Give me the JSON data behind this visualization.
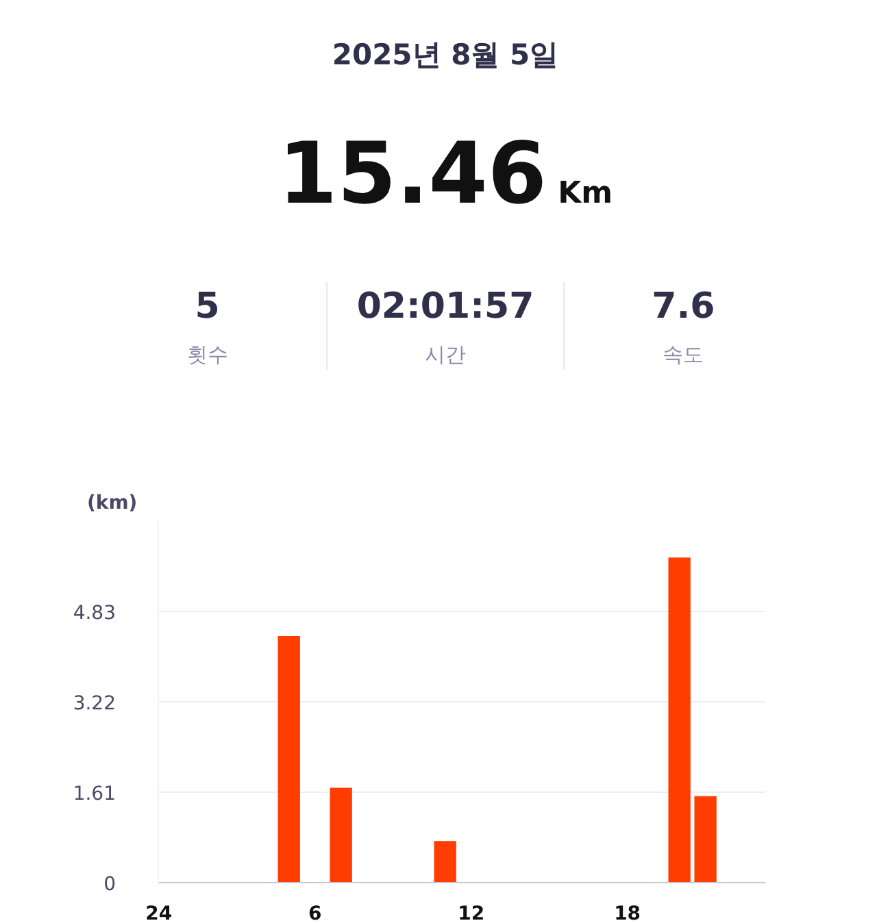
{
  "chart_data": {
    "type": "bar",
    "title": "2025년 8월 5일",
    "annotations": [
      "15.46",
      "Km",
      "5",
      "횟수",
      "02:01:57",
      "시간",
      "7.6",
      "속도"
    ],
    "ylabel": "(km)",
    "categories": [
      "24",
      null,
      null,
      null,
      null,
      null,
      "6",
      null,
      null,
      null,
      null,
      null,
      "12",
      null,
      null,
      null,
      null,
      null,
      "18",
      null,
      null,
      null,
      null,
      null
    ],
    "values": [
      null,
      null,
      null,
      null,
      null,
      4.39,
      null,
      1.69,
      null,
      null,
      null,
      0.74,
      null,
      null,
      null,
      null,
      null,
      null,
      null,
      null,
      5.79,
      1.54,
      null,
      null
    ],
    "color": "#ff3d00",
    "ylim": [
      0,
      6.44
    ],
    "yticks": [
      0,
      1.61,
      3.22,
      4.83
    ],
    "grid": "y"
  }
}
